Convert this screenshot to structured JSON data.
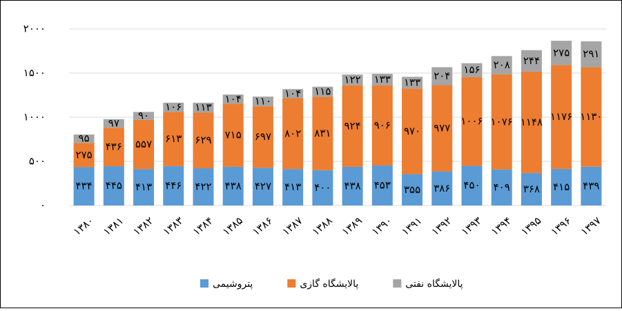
{
  "chart_data": {
    "type": "stacked_bar",
    "categories": [
      "۱۳۸۰",
      "۱۳۸۱",
      "۱۳۸۲",
      "۱۳۸۳",
      "۱۳۸۴",
      "۱۳۸۵",
      "۱۳۸۶",
      "۱۳۸۷",
      "۱۳۸۸",
      "۱۳۸۹",
      "۱۳۹۰",
      "۱۳۹۱",
      "۱۳۹۲",
      "۱۳۹۳",
      "۱۳۹۴",
      "۱۳۹۵",
      "۱۳۹۶",
      "۱۳۹۷"
    ],
    "series": [
      {
        "name": "پتروشیمی",
        "color": "#5b9bd5",
        "values": [
          434,
          445,
          413,
          446,
          422,
          438,
          427,
          413,
          400,
          438,
          453,
          355,
          386,
          450,
          409,
          368,
          415,
          439
        ],
        "value_labels": [
          "۴۳۴",
          "۴۴۵",
          "۴۱۳",
          "۴۴۶",
          "۴۲۲",
          "۴۳۸",
          "۴۲۷",
          "۴۱۳",
          "۴۰۰",
          "۴۳۸",
          "۴۵۳",
          "۳۵۵",
          "۳۸۶",
          "۴۵۰",
          "۴۰۹",
          "۳۶۸",
          "۴۱۵",
          "۴۳۹"
        ]
      },
      {
        "name": "پالایشگاه گازی",
        "color": "#ed7d31",
        "values": [
          275,
          436,
          557,
          613,
          629,
          715,
          697,
          802,
          831,
          924,
          906,
          970,
          977,
          1006,
          1076,
          1148,
          1176,
          1130
        ],
        "value_labels": [
          "۲۷۵",
          "۴۳۶",
          "۵۵۷",
          "۶۱۳",
          "۶۲۹",
          "۷۱۵",
          "۶۹۷",
          "۸۰۲",
          "۸۳۱",
          "۹۲۴",
          "۹۰۶",
          "۹۷۰",
          "۹۷۷",
          "۱۰۰۶",
          "۱۰۷۶",
          "۱۱۴۸",
          "۱۱۷۶",
          "۱۱۳۰"
        ]
      },
      {
        "name": "پالایشگاه نفتی",
        "color": "#a5a5a5",
        "values": [
          95,
          97,
          90,
          106,
          113,
          104,
          110,
          104,
          115,
          122,
          133,
          133,
          204,
          156,
          208,
          244,
          275,
          291
        ],
        "value_labels": [
          "۹۵",
          "۹۷",
          "۹۰",
          "۱۰۶",
          "۱۱۳",
          "۱۰۴",
          "۱۱۰",
          "۱۰۴",
          "۱۱۵",
          "۱۲۲",
          "۱۳۳",
          "۱۳۳",
          "۲۰۴",
          "۱۵۶",
          "۲۰۸",
          "۲۴۴",
          "۲۷۵",
          "۲۹۱"
        ]
      }
    ],
    "ylim": [
      0,
      2000
    ],
    "yticks": [
      {
        "value": 0,
        "label": "۰"
      },
      {
        "value": 500,
        "label": "۵۰۰"
      },
      {
        "value": 1000,
        "label": "۱۰۰۰"
      },
      {
        "value": 1500,
        "label": "۱۵۰۰"
      },
      {
        "value": 2000,
        "label": "۲۰۰۰"
      }
    ],
    "grid": true,
    "legend": "bottom"
  }
}
